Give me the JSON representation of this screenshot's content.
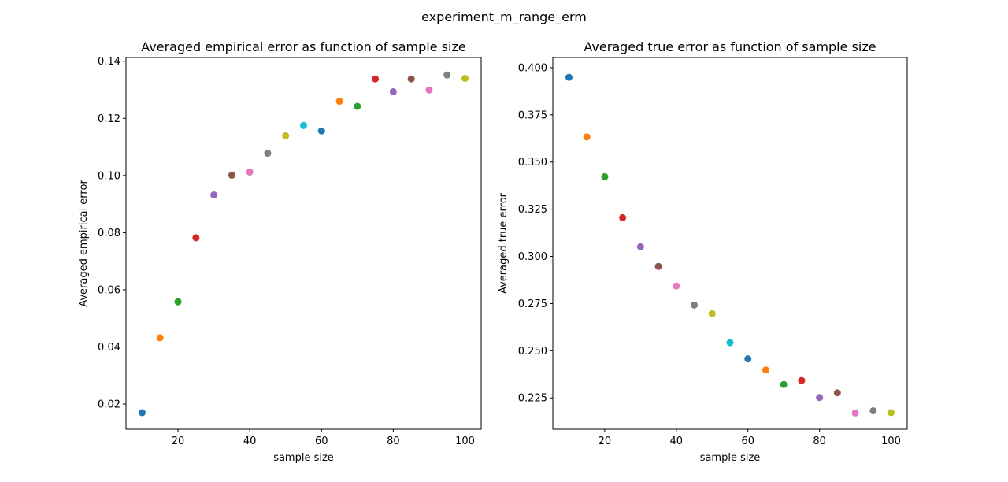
{
  "figure": {
    "suptitle": "experiment_m_range_erm"
  },
  "palette": [
    "#1f77b4",
    "#ff7f0e",
    "#2ca02c",
    "#d62728",
    "#9467bd",
    "#8c564b",
    "#e377c2",
    "#7f7f7f",
    "#bcbd22",
    "#17becf"
  ],
  "chart_data": [
    {
      "type": "scatter",
      "title": "Averaged empirical error as function of sample size",
      "xlabel": "sample size",
      "ylabel": "Averaged empirical error",
      "xlim": [
        5.5,
        104.5
      ],
      "ylim": [
        0.0112,
        0.1413
      ],
      "xticks": [
        20,
        40,
        60,
        80,
        100
      ],
      "yticks": [
        0.02,
        0.04,
        0.06,
        0.08,
        0.1,
        0.12,
        0.14
      ],
      "ytick_labels": [
        "0.02",
        "0.04",
        "0.06",
        "0.08",
        "0.10",
        "0.12",
        "0.14"
      ],
      "grid": false,
      "x": [
        10,
        15,
        20,
        25,
        30,
        35,
        40,
        45,
        50,
        55,
        60,
        65,
        70,
        75,
        80,
        85,
        90,
        95,
        100
      ],
      "y": [
        0.017,
        0.0432,
        0.0558,
        0.0782,
        0.0932,
        0.1001,
        0.1012,
        0.1078,
        0.1139,
        0.1175,
        0.1156,
        0.126,
        0.1242,
        0.1338,
        0.1293,
        0.1338,
        0.1299,
        0.1352,
        0.134
      ]
    },
    {
      "type": "scatter",
      "title": "Averaged true error as function of sample size",
      "xlabel": "sample size",
      "ylabel": "Averaged true error",
      "xlim": [
        5.5,
        104.5
      ],
      "ylim": [
        0.2084,
        0.4054
      ],
      "xticks": [
        20,
        40,
        60,
        80,
        100
      ],
      "yticks": [
        0.225,
        0.25,
        0.275,
        0.3,
        0.325,
        0.35,
        0.375,
        0.4
      ],
      "ytick_labels": [
        "0.225",
        "0.250",
        "0.275",
        "0.300",
        "0.325",
        "0.350",
        "0.375",
        "0.400"
      ],
      "grid": false,
      "x": [
        10,
        15,
        20,
        25,
        30,
        35,
        40,
        45,
        50,
        55,
        60,
        65,
        70,
        75,
        80,
        85,
        90,
        95,
        100
      ],
      "y": [
        0.3949,
        0.3633,
        0.3422,
        0.3205,
        0.3051,
        0.2947,
        0.2843,
        0.2742,
        0.2696,
        0.2543,
        0.2457,
        0.2398,
        0.2321,
        0.2342,
        0.2252,
        0.2277,
        0.217,
        0.2182,
        0.2172
      ]
    }
  ]
}
